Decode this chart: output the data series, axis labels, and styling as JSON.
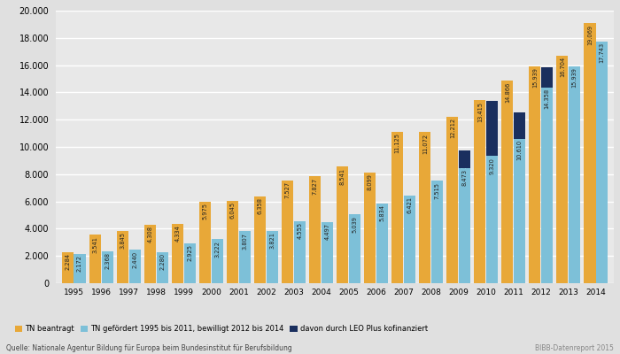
{
  "years": [
    1995,
    1996,
    1997,
    1998,
    1999,
    2000,
    2001,
    2002,
    2003,
    2004,
    2005,
    2006,
    2007,
    2008,
    2009,
    2010,
    2011,
    2012,
    2013,
    2014
  ],
  "tn_beantragt": [
    2284,
    3541,
    3845,
    4308,
    4334,
    5975,
    6045,
    6358,
    7527,
    7827,
    8541,
    8099,
    11125,
    11072,
    12212,
    13415,
    14866,
    15939,
    16704,
    19069
  ],
  "tn_gefoerdert": [
    2172,
    2368,
    2440,
    2280,
    2925,
    3222,
    3807,
    3821,
    4555,
    4497,
    5039,
    5834,
    6421,
    7515,
    8473,
    9320,
    10610,
    14358,
    15939,
    17743
  ],
  "leo_plus": [
    0,
    0,
    0,
    0,
    0,
    0,
    0,
    0,
    0,
    0,
    0,
    0,
    0,
    0,
    1269,
    4038,
    1918,
    1500,
    0,
    0
  ],
  "color_beantragt": "#E8A838",
  "color_gefoerdert": "#7DC0D8",
  "color_leo": "#1A2F5E",
  "ylim": [
    0,
    20000
  ],
  "yticks": [
    0,
    2000,
    4000,
    6000,
    8000,
    10000,
    12000,
    14000,
    16000,
    18000,
    20000
  ],
  "legend_labels": [
    "TN beantragt",
    "TN gefördert 1995 bis 2011, bewilligt 2012 bis 2014",
    "davon durch LEO Plus kofinanziert"
  ],
  "source_text": "Quelle: Nationale Agentur Bildung für Europa beim Bundesinstitut für Berufsbildung",
  "source_right": "BIBB-Datenreport 2015",
  "bg_color": "#E0E0E0",
  "plot_bg_color": "#E8E8E8",
  "bar_value_fontsize": 4.8,
  "bar_width": 0.42,
  "bar_gap": 0.02
}
